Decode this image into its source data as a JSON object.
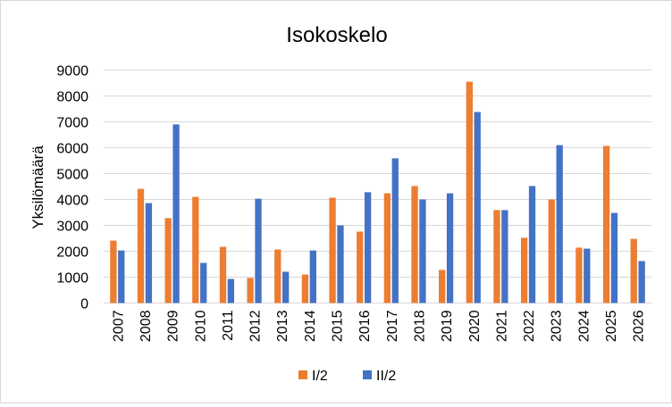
{
  "chart_data": {
    "type": "bar",
    "title": "Isokoskelo",
    "xlabel": "",
    "ylabel": "Yksilömäärä",
    "ylim": [
      0,
      9000
    ],
    "yticks": [
      0,
      1000,
      2000,
      3000,
      4000,
      5000,
      6000,
      7000,
      8000,
      9000
    ],
    "grid": true,
    "legend_position": "bottom",
    "categories": [
      "2007",
      "2008",
      "2009",
      "2010",
      "2011",
      "2012",
      "2013",
      "2014",
      "2015",
      "2016",
      "2017",
      "2018",
      "2019",
      "2020",
      "2021",
      "2022",
      "2023",
      "2024",
      "2025",
      "2026"
    ],
    "series": [
      {
        "name": "I/2",
        "color": "#ED7D31",
        "values": [
          2410,
          4410,
          3280,
          4100,
          2170,
          970,
          2070,
          1100,
          4070,
          2760,
          4240,
          4520,
          1280,
          8550,
          3590,
          2520,
          4000,
          2140,
          6070,
          2480
        ]
      },
      {
        "name": "II/2",
        "color": "#4472C4",
        "values": [
          2030,
          3860,
          6900,
          1550,
          930,
          4030,
          1210,
          2030,
          3000,
          4280,
          5590,
          4000,
          4240,
          7380,
          3590,
          4520,
          6100,
          2100,
          3480,
          1620
        ]
      }
    ]
  }
}
